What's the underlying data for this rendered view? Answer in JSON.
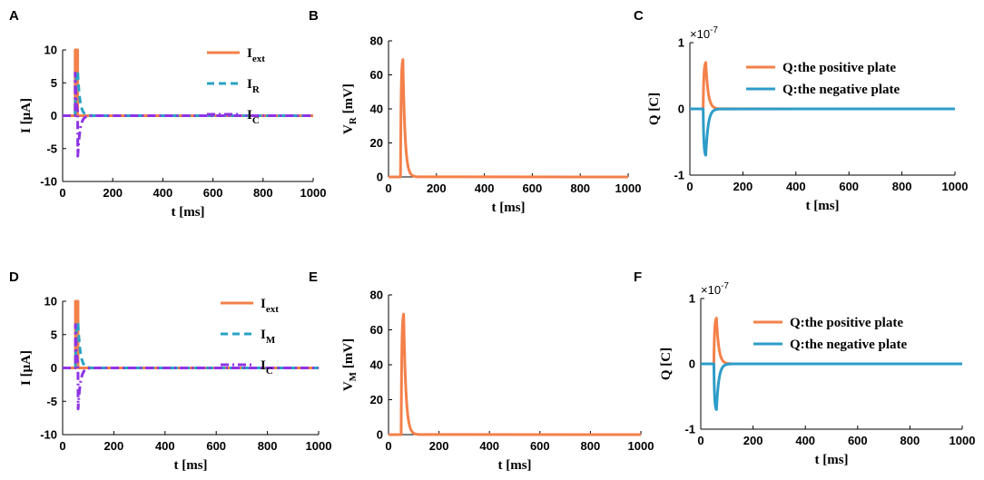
{
  "colors": {
    "orange": "#F4804A",
    "cyan": "#29A3C4",
    "blue": "#2E9CC8",
    "purple": "#8E33E5",
    "axis": "#000000"
  },
  "chart_data": [
    {
      "panel": "A",
      "type": "line",
      "xlabel": "t [ms]",
      "ylabel": "I [μA]",
      "xlim": [
        0,
        1000
      ],
      "ylim": [
        -10,
        10
      ],
      "xticks": [
        0,
        200,
        400,
        600,
        800,
        1000
      ],
      "yticks": [
        -10,
        -5,
        0,
        5,
        10
      ],
      "series": [
        {
          "name": "I",
          "sub": "ext",
          "style": "solid",
          "color": "#F4804A",
          "kind": "pulse",
          "amp": 10,
          "t0": 50,
          "t1": 60
        },
        {
          "name": "I",
          "sub": "R",
          "style": "dashed",
          "color": "#29A3C4",
          "kind": "decay",
          "amp": 6.8,
          "t0": 50,
          "tau": 9,
          "end": 60
        },
        {
          "name": "I",
          "sub": "C",
          "style": "dashdot",
          "color": "#8E33E5",
          "kind": "cap",
          "amp": 6.5,
          "t0": 50,
          "tau": 9,
          "end": 60
        }
      ]
    },
    {
      "panel": "B",
      "type": "line",
      "xlabel": "t [ms]",
      "ylabel": "V",
      "ylabel_sub": "R",
      "ylabel_rest": " [mV]",
      "xlim": [
        0,
        1000
      ],
      "ylim": [
        0,
        80
      ],
      "xticks": [
        0,
        200,
        400,
        600,
        800,
        1000
      ],
      "yticks": [
        0,
        20,
        40,
        60,
        80
      ],
      "series": [
        {
          "name": "V_R",
          "style": "solid",
          "color": "#F4804A",
          "kind": "decay",
          "amp": 69,
          "t0": 50,
          "tau": 9,
          "end": 60
        }
      ]
    },
    {
      "panel": "C",
      "type": "line",
      "xlabel": "t [ms]",
      "ylabel": "Q [C]",
      "exponent": "×10",
      "exponent_power": "-7",
      "xlim": [
        0,
        1000
      ],
      "ylim": [
        -1,
        1
      ],
      "xticks": [
        0,
        200,
        400,
        600,
        800,
        1000
      ],
      "yticks": [
        -1,
        0,
        1
      ],
      "series": [
        {
          "name": "Q:the positive plate",
          "style": "solid",
          "color": "#F4804A",
          "kind": "decay",
          "amp": 0.7,
          "t0": 50,
          "tau": 9,
          "end": 60
        },
        {
          "name": "Q:the negative plate",
          "style": "solid",
          "color": "#2E9CC8",
          "kind": "decay",
          "amp": -0.7,
          "t0": 50,
          "tau": 9,
          "end": 60
        }
      ]
    },
    {
      "panel": "D",
      "type": "line",
      "xlabel": "t [ms]",
      "ylabel": "I [μA]",
      "xlim": [
        0,
        1000
      ],
      "ylim": [
        -10,
        10
      ],
      "xticks": [
        0,
        200,
        400,
        600,
        800,
        1000
      ],
      "yticks": [
        -10,
        -5,
        0,
        5,
        10
      ],
      "series": [
        {
          "name": "I",
          "sub": "ext",
          "style": "solid",
          "color": "#F4804A",
          "kind": "pulse",
          "amp": 10,
          "t0": 50,
          "t1": 60
        },
        {
          "name": "I",
          "sub": "M",
          "style": "dashed",
          "color": "#29A3C4",
          "kind": "decay",
          "amp": 6.8,
          "t0": 50,
          "tau": 9,
          "end": 60
        },
        {
          "name": "I",
          "sub": "C",
          "style": "dashdot",
          "color": "#8E33E5",
          "kind": "cap",
          "amp": 6.5,
          "t0": 50,
          "tau": 9,
          "end": 60
        }
      ]
    },
    {
      "panel": "E",
      "type": "line",
      "xlabel": "t [ms]",
      "ylabel": "V",
      "ylabel_sub": "M",
      "ylabel_rest": " [mV]",
      "xlim": [
        0,
        1000
      ],
      "ylim": [
        0,
        80
      ],
      "xticks": [
        0,
        200,
        400,
        600,
        800,
        1000
      ],
      "yticks": [
        0,
        20,
        40,
        60,
        80
      ],
      "series": [
        {
          "name": "V_M",
          "style": "solid",
          "color": "#F4804A",
          "kind": "decay",
          "amp": 69,
          "t0": 50,
          "tau": 9,
          "end": 60
        }
      ]
    },
    {
      "panel": "F",
      "type": "line",
      "xlabel": "t [ms]",
      "ylabel": "Q [C]",
      "exponent": "×10",
      "exponent_power": "-7",
      "xlim": [
        0,
        1000
      ],
      "ylim": [
        -1,
        1
      ],
      "xticks": [
        0,
        200,
        400,
        600,
        800,
        1000
      ],
      "yticks": [
        -1,
        0,
        1
      ],
      "series": [
        {
          "name": "Q:the positive plate",
          "style": "solid",
          "color": "#F4804A",
          "kind": "decay",
          "amp": 0.7,
          "t0": 50,
          "tau": 9,
          "end": 60
        },
        {
          "name": "Q:the negative plate",
          "style": "solid",
          "color": "#2E9CC8",
          "kind": "decay",
          "amp": -0.7,
          "t0": 50,
          "tau": 9,
          "end": 60
        }
      ]
    }
  ]
}
